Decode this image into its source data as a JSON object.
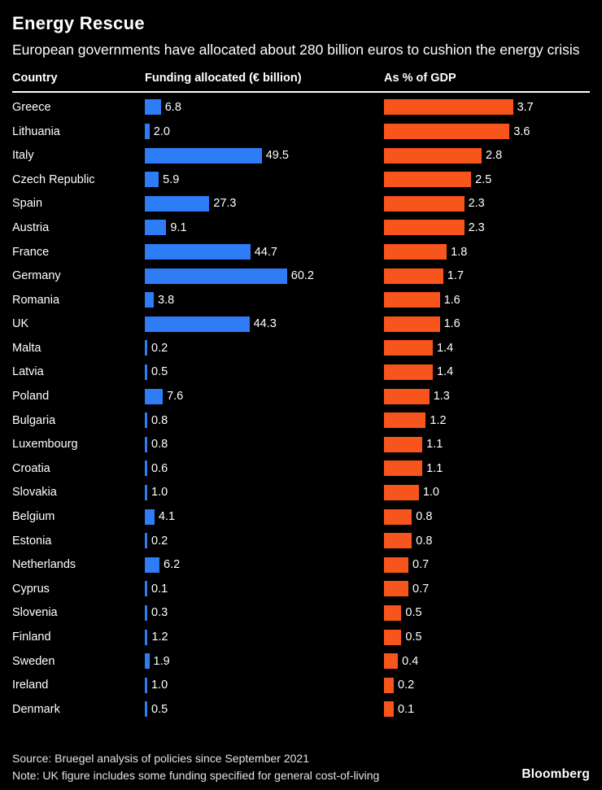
{
  "header": {
    "title": "Energy Rescue",
    "subtitle": "European governments have allocated about 280 billion euros to cushion the energy crisis"
  },
  "columns": {
    "country": "Country",
    "funding": "Funding allocated (€ billion)",
    "gdp": "As % of GDP"
  },
  "chart_data": {
    "type": "bar",
    "orientation": "horizontal",
    "title": "Energy Rescue",
    "subtitle": "European governments have allocated about 280 billion euros to cushion the energy crisis",
    "categories": [
      "Greece",
      "Lithuania",
      "Italy",
      "Czech Republic",
      "Spain",
      "Austria",
      "France",
      "Germany",
      "Romania",
      "UK",
      "Malta",
      "Latvia",
      "Poland",
      "Bulgaria",
      "Luxembourg",
      "Croatia",
      "Slovakia",
      "Belgium",
      "Estonia",
      "Netherlands",
      "Cyprus",
      "Slovenia",
      "Finland",
      "Sweden",
      "Ireland",
      "Denmark"
    ],
    "series": [
      {
        "name": "Funding allocated (€ billion)",
        "color": "#2e7df6",
        "xlim": [
          0,
          62
        ],
        "values": [
          6.8,
          2.0,
          49.5,
          5.9,
          27.3,
          9.1,
          44.7,
          60.2,
          3.8,
          44.3,
          0.2,
          0.5,
          7.6,
          0.8,
          0.8,
          0.6,
          1.0,
          4.1,
          0.2,
          6.2,
          0.1,
          0.3,
          1.2,
          1.9,
          1.0,
          0.5
        ]
      },
      {
        "name": "As % of GDP",
        "color": "#f8551c",
        "xlim": [
          0,
          3.85
        ],
        "values": [
          3.7,
          3.6,
          2.8,
          2.5,
          2.3,
          2.3,
          1.8,
          1.7,
          1.6,
          1.6,
          1.4,
          1.4,
          1.3,
          1.2,
          1.1,
          1.1,
          1.0,
          0.8,
          0.8,
          0.7,
          0.7,
          0.5,
          0.5,
          0.4,
          0.2,
          0.1
        ]
      }
    ],
    "legend_position": "column-headers",
    "grid": false,
    "value_labels": true
  },
  "colors": {
    "background": "#000000",
    "funding_bar": "#2e7df6",
    "gdp_bar": "#f8551c",
    "text": "#ffffff",
    "footer_text": "#e3e3e3"
  },
  "footer": {
    "source": "Source: Bruegel analysis of policies since September 2021",
    "note": "Note: UK figure includes some funding specified for general cost-of-living",
    "brand": "Bloomberg"
  }
}
